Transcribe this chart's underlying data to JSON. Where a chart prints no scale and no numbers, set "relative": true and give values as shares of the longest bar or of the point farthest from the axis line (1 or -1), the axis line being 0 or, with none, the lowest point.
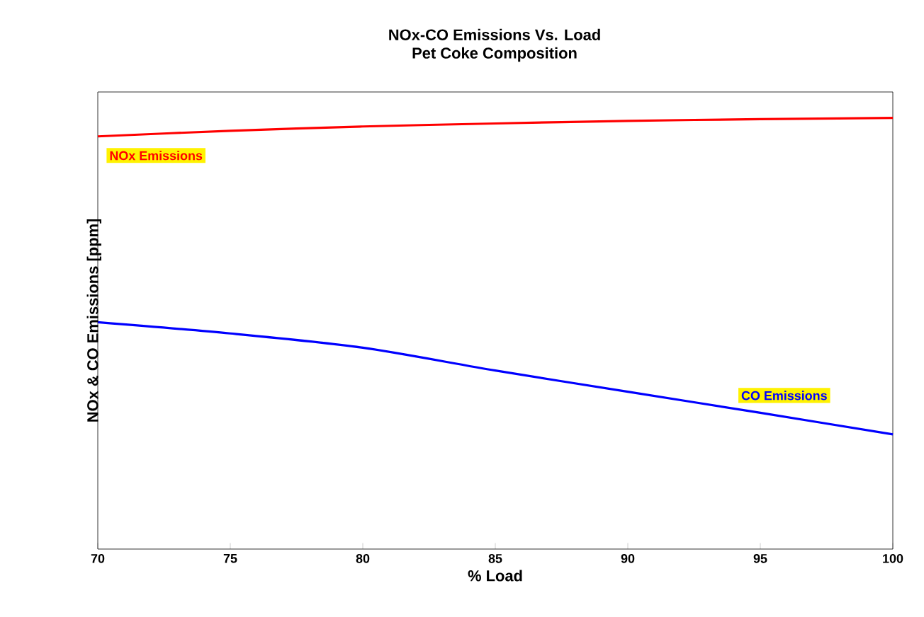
{
  "chart_data": {
    "type": "line",
    "title": "NOx-CO Emissions Vs. Load",
    "subtitle": "Pet Coke Composition",
    "xlabel": "% Load",
    "ylabel": "NOx & CO Emissions [ppm]",
    "relative": true,
    "x": [
      70,
      75,
      80,
      85,
      90,
      95,
      100
    ],
    "xlim": [
      70,
      100
    ],
    "xticks": [
      70,
      75,
      80,
      85,
      90,
      95,
      100
    ],
    "legend": false,
    "grid": false,
    "series": [
      {
        "name": "NOx Emissions",
        "color": "#ff0000",
        "values": [
          0.957,
          0.97,
          0.98,
          0.987,
          0.993,
          0.997,
          1
        ]
      },
      {
        "name": "CO Emissions",
        "color": "#0000ff",
        "values": [
          0.526,
          0.5,
          0.467,
          0.414,
          0.365,
          0.316,
          0.266
        ]
      }
    ]
  }
}
